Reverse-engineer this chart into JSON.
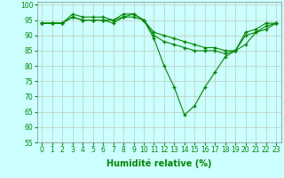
{
  "xlabel": "Humidité relative (%)",
  "background_color": "#ccffff",
  "grid_color": "#bbccbb",
  "line_color": "#008800",
  "marker": "+",
  "xlim": [
    -0.5,
    23.5
  ],
  "ylim": [
    55,
    101
  ],
  "yticks": [
    55,
    60,
    65,
    70,
    75,
    80,
    85,
    90,
    95,
    100
  ],
  "xticks": [
    0,
    1,
    2,
    3,
    4,
    5,
    6,
    7,
    8,
    9,
    10,
    11,
    12,
    13,
    14,
    15,
    16,
    17,
    18,
    19,
    20,
    21,
    22,
    23
  ],
  "line1_x": [
    0,
    1,
    2,
    3,
    4,
    5,
    6,
    7,
    8,
    9,
    10,
    11,
    12,
    13,
    14,
    15,
    16,
    17,
    18,
    19,
    20,
    21,
    22,
    23
  ],
  "line1_y": [
    94,
    94,
    94,
    97,
    96,
    96,
    96,
    95,
    97,
    97,
    95,
    89,
    80,
    73,
    64,
    67,
    73,
    78,
    83,
    85,
    87,
    91,
    92,
    94
  ],
  "line2_x": [
    0,
    1,
    2,
    3,
    4,
    5,
    6,
    7,
    8,
    9,
    10,
    11,
    12,
    13,
    14,
    15,
    16,
    17,
    18,
    19,
    20,
    21,
    22,
    23
  ],
  "line2_y": [
    94,
    94,
    94,
    96,
    95,
    95,
    95,
    94,
    96,
    96,
    95,
    90,
    88,
    87,
    86,
    85,
    85,
    85,
    84,
    85,
    91,
    92,
    94,
    94
  ],
  "line3_x": [
    0,
    1,
    2,
    3,
    4,
    5,
    6,
    7,
    8,
    9,
    10,
    11,
    12,
    13,
    14,
    15,
    16,
    17,
    18,
    19,
    20,
    21,
    22,
    23
  ],
  "line3_y": [
    94,
    94,
    94,
    96,
    95,
    95,
    95,
    95,
    96,
    97,
    95,
    91,
    90,
    89,
    88,
    87,
    86,
    86,
    85,
    85,
    90,
    91,
    93,
    94
  ],
  "xlabel_fontsize": 7,
  "tick_fontsize": 5.5,
  "markersize": 3,
  "linewidth": 0.8
}
